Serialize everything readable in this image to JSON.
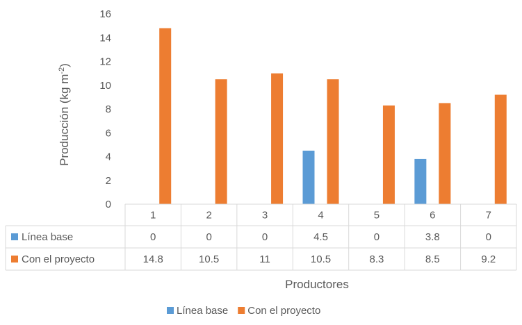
{
  "chart_data": {
    "type": "bar",
    "categories": [
      "1",
      "2",
      "3",
      "4",
      "5",
      "6",
      "7"
    ],
    "series": [
      {
        "name": "Línea base",
        "values": [
          "0",
          "0",
          "0",
          "4.5",
          "0",
          "3.8",
          "0"
        ],
        "color": "#5b9bd5"
      },
      {
        "name": "Con el proyecto",
        "values": [
          "14.8",
          "10.5",
          "11",
          "10.5",
          "8.3",
          "8.5",
          "9.2"
        ],
        "color": "#ed7d31"
      }
    ],
    "xlabel": "Productores",
    "ylabel": "Producción (kg m",
    "ylabel_sup": "-2",
    "ylabel_end": ")",
    "ylim": [
      0,
      16
    ],
    "yticks": [
      "0",
      "2",
      "4",
      "6",
      "8",
      "10",
      "12",
      "14",
      "16"
    ],
    "legend_position": "bottom",
    "data_table": true,
    "grid": false
  }
}
